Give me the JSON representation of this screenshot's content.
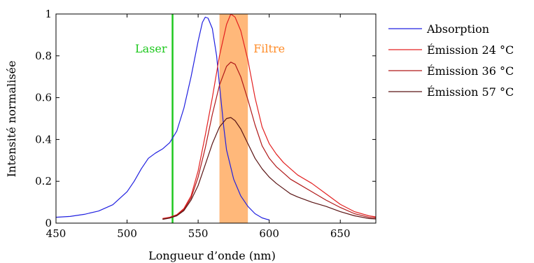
{
  "chart_data": {
    "type": "line",
    "xlabel": "Longueur d’onde (nm)",
    "ylabel": "Intensité normalisée",
    "xlim": [
      450,
      675
    ],
    "ylim": [
      0,
      1
    ],
    "xticks": [
      450,
      500,
      550,
      600,
      650
    ],
    "yticks": [
      0,
      0.2,
      0.4,
      0.6,
      0.8,
      1
    ],
    "grid": false,
    "legend_position": "outside-right",
    "laser": {
      "label": "Laser",
      "x": 532,
      "color": "#1ec81e"
    },
    "filter": {
      "label": "Filtre",
      "x_range": [
        565,
        585
      ],
      "color": "#ffb87a",
      "label_color": "#ff8c28"
    },
    "series": [
      {
        "name": "Absorption",
        "color": "#2020e0",
        "points": [
          [
            450,
            0.028
          ],
          [
            460,
            0.032
          ],
          [
            470,
            0.042
          ],
          [
            480,
            0.058
          ],
          [
            490,
            0.088
          ],
          [
            500,
            0.15
          ],
          [
            505,
            0.2
          ],
          [
            510,
            0.26
          ],
          [
            515,
            0.31
          ],
          [
            520,
            0.335
          ],
          [
            525,
            0.355
          ],
          [
            530,
            0.385
          ],
          [
            535,
            0.44
          ],
          [
            540,
            0.55
          ],
          [
            545,
            0.7
          ],
          [
            550,
            0.87
          ],
          [
            553,
            0.96
          ],
          [
            555,
            0.985
          ],
          [
            557,
            0.98
          ],
          [
            560,
            0.93
          ],
          [
            563,
            0.8
          ],
          [
            565,
            0.66
          ],
          [
            568,
            0.46
          ],
          [
            570,
            0.35
          ],
          [
            575,
            0.21
          ],
          [
            580,
            0.13
          ],
          [
            585,
            0.08
          ],
          [
            590,
            0.045
          ],
          [
            595,
            0.025
          ],
          [
            600,
            0.015
          ]
        ]
      },
      {
        "name": "Émission 24 °C",
        "color": "#e32020",
        "points": [
          [
            525,
            0.022
          ],
          [
            530,
            0.028
          ],
          [
            535,
            0.04
          ],
          [
            540,
            0.07
          ],
          [
            545,
            0.13
          ],
          [
            550,
            0.25
          ],
          [
            555,
            0.42
          ],
          [
            560,
            0.6
          ],
          [
            565,
            0.8
          ],
          [
            570,
            0.95
          ],
          [
            573,
            1.0
          ],
          [
            576,
            0.985
          ],
          [
            580,
            0.92
          ],
          [
            585,
            0.78
          ],
          [
            590,
            0.6
          ],
          [
            595,
            0.46
          ],
          [
            600,
            0.38
          ],
          [
            605,
            0.33
          ],
          [
            610,
            0.29
          ],
          [
            615,
            0.26
          ],
          [
            620,
            0.23
          ],
          [
            630,
            0.19
          ],
          [
            640,
            0.14
          ],
          [
            650,
            0.09
          ],
          [
            660,
            0.055
          ],
          [
            670,
            0.035
          ],
          [
            675,
            0.03
          ]
        ]
      },
      {
        "name": "Émission 36 °C",
        "color": "#b01818",
        "points": [
          [
            525,
            0.02
          ],
          [
            530,
            0.026
          ],
          [
            535,
            0.038
          ],
          [
            540,
            0.065
          ],
          [
            545,
            0.12
          ],
          [
            550,
            0.22
          ],
          [
            555,
            0.36
          ],
          [
            560,
            0.52
          ],
          [
            565,
            0.66
          ],
          [
            570,
            0.75
          ],
          [
            573,
            0.77
          ],
          [
            576,
            0.76
          ],
          [
            580,
            0.7
          ],
          [
            585,
            0.59
          ],
          [
            590,
            0.47
          ],
          [
            595,
            0.37
          ],
          [
            600,
            0.31
          ],
          [
            605,
            0.27
          ],
          [
            610,
            0.24
          ],
          [
            615,
            0.21
          ],
          [
            620,
            0.19
          ],
          [
            630,
            0.15
          ],
          [
            640,
            0.11
          ],
          [
            650,
            0.075
          ],
          [
            660,
            0.045
          ],
          [
            670,
            0.028
          ],
          [
            675,
            0.025
          ]
        ]
      },
      {
        "name": "Émission 57 °C",
        "color": "#5a1414",
        "points": [
          [
            525,
            0.018
          ],
          [
            530,
            0.024
          ],
          [
            535,
            0.035
          ],
          [
            540,
            0.06
          ],
          [
            545,
            0.11
          ],
          [
            550,
            0.18
          ],
          [
            555,
            0.28
          ],
          [
            560,
            0.38
          ],
          [
            565,
            0.46
          ],
          [
            570,
            0.5
          ],
          [
            573,
            0.505
          ],
          [
            576,
            0.49
          ],
          [
            580,
            0.45
          ],
          [
            585,
            0.38
          ],
          [
            590,
            0.31
          ],
          [
            595,
            0.26
          ],
          [
            600,
            0.22
          ],
          [
            605,
            0.19
          ],
          [
            610,
            0.165
          ],
          [
            615,
            0.14
          ],
          [
            620,
            0.125
          ],
          [
            630,
            0.1
          ],
          [
            640,
            0.08
          ],
          [
            650,
            0.055
          ],
          [
            660,
            0.035
          ],
          [
            670,
            0.022
          ],
          [
            675,
            0.02
          ]
        ]
      }
    ]
  }
}
